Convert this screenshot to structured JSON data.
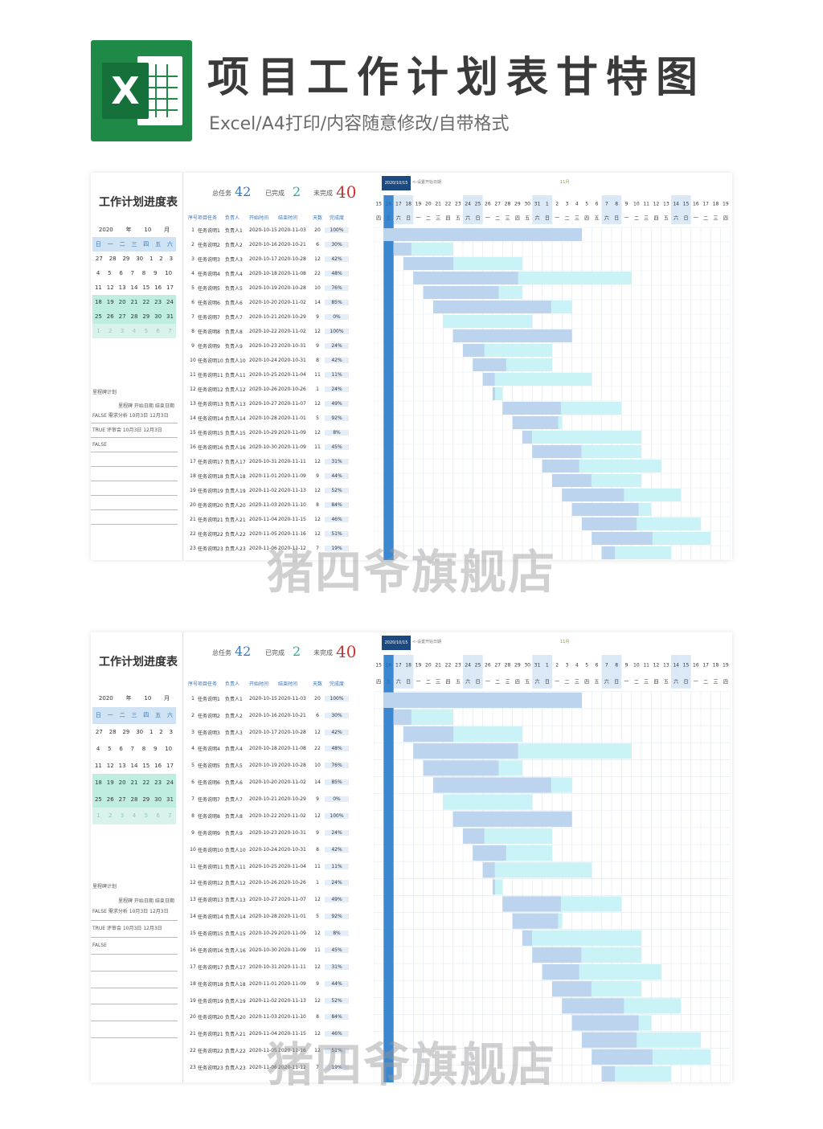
{
  "header": {
    "title": "项目工作计划表甘特图",
    "subtitle": "Excel/A4打印/内容随意修改/自带格式",
    "logo_letter": "X"
  },
  "sheet": {
    "title": "工作计划进度表",
    "stats": {
      "total_label": "总任务",
      "total": "42",
      "done_label": "已完成",
      "done": "2",
      "todo_label": "未完成",
      "todo": "40"
    },
    "calendar": {
      "year": "2020",
      "year_unit": "年",
      "month": "10",
      "month_unit": "月",
      "weekdays": [
        "日",
        "一",
        "二",
        "三",
        "四",
        "五",
        "六"
      ],
      "weeks": [
        [
          "27",
          "28",
          "29",
          "30",
          "1",
          "2",
          "3"
        ],
        [
          "4",
          "5",
          "6",
          "7",
          "8",
          "9",
          "10"
        ],
        [
          "11",
          "12",
          "13",
          "14",
          "15",
          "16",
          "17"
        ],
        [
          "18",
          "19",
          "20",
          "21",
          "22",
          "23",
          "24"
        ],
        [
          "25",
          "26",
          "27",
          "28",
          "29",
          "30",
          "31"
        ],
        [
          "1",
          "2",
          "3",
          "4",
          "5",
          "6",
          "7"
        ]
      ]
    },
    "milestones": {
      "label": "里程碑计划",
      "headers": "里程碑  开始日期 结束日期",
      "rows": [
        "FALSE  需求分析 10月3日 12月3日",
        "TRUE  评审会 10月3日 12月3日",
        "FALSE",
        "",
        "",
        "",
        "",
        ""
      ]
    },
    "table_headers": [
      "序号",
      "项目任务",
      "负责人",
      "开始时间",
      "结束时间",
      "天数",
      "完成度"
    ],
    "tasks": [
      [
        "1",
        "任务说明1",
        "负责人1",
        "2020-10-15",
        "2020-11-03",
        "20",
        "100%"
      ],
      [
        "2",
        "任务说明2",
        "负责人2",
        "2020-10-16",
        "2020-10-21",
        "6",
        "30%"
      ],
      [
        "3",
        "任务说明3",
        "负责人3",
        "2020-10-17",
        "2020-10-28",
        "12",
        "42%"
      ],
      [
        "4",
        "任务说明4",
        "负责人4",
        "2020-10-18",
        "2020-11-08",
        "22",
        "48%"
      ],
      [
        "5",
        "任务说明5",
        "负责人5",
        "2020-10-19",
        "2020-10-28",
        "10",
        "76%"
      ],
      [
        "6",
        "任务说明6",
        "负责人6",
        "2020-10-20",
        "2020-11-02",
        "14",
        "85%"
      ],
      [
        "7",
        "任务说明7",
        "负责人7",
        "2020-10-21",
        "2020-10-29",
        "9",
        "0%"
      ],
      [
        "8",
        "任务说明8",
        "负责人8",
        "2020-10-22",
        "2020-11-02",
        "12",
        "100%"
      ],
      [
        "9",
        "任务说明9",
        "负责人9",
        "2020-10-23",
        "2020-10-31",
        "9",
        "24%"
      ],
      [
        "10",
        "任务说明10",
        "负责人10",
        "2020-10-24",
        "2020-10-31",
        "8",
        "42%"
      ],
      [
        "11",
        "任务说明11",
        "负责人11",
        "2020-10-25",
        "2020-11-04",
        "11",
        "11%"
      ],
      [
        "12",
        "任务说明12",
        "负责人12",
        "2020-10-26",
        "2020-10-26",
        "1",
        "24%"
      ],
      [
        "13",
        "任务说明13",
        "负责人13",
        "2020-10-27",
        "2020-11-07",
        "12",
        "49%"
      ],
      [
        "14",
        "任务说明14",
        "负责人14",
        "2020-10-28",
        "2020-11-01",
        "5",
        "92%"
      ],
      [
        "15",
        "任务说明15",
        "负责人15",
        "2020-10-29",
        "2020-11-09",
        "12",
        "8%"
      ],
      [
        "16",
        "任务说明16",
        "负责人16",
        "2020-10-30",
        "2020-11-09",
        "11",
        "45%"
      ],
      [
        "17",
        "任务说明17",
        "负责人17",
        "2020-10-31",
        "2020-11-11",
        "12",
        "31%"
      ],
      [
        "18",
        "任务说明18",
        "负责人18",
        "2020-11-01",
        "2020-11-09",
        "9",
        "44%"
      ],
      [
        "19",
        "任务说明19",
        "负责人19",
        "2020-11-02",
        "2020-11-13",
        "12",
        "52%"
      ],
      [
        "20",
        "任务说明20",
        "负责人20",
        "2020-11-03",
        "2020-11-10",
        "8",
        "84%"
      ],
      [
        "21",
        "任务说明21",
        "负责人21",
        "2020-11-04",
        "2020-11-15",
        "12",
        "46%"
      ],
      [
        "22",
        "任务说明22",
        "负责人22",
        "2020-11-05",
        "2020-11-16",
        "12",
        "51%"
      ],
      [
        "23",
        "任务说明23",
        "负责人23",
        "2020-11-06",
        "2020-11-12",
        "7",
        "19%"
      ]
    ],
    "gantt": {
      "start_date": "2020/10/15",
      "tip": "<-设置开始日期",
      "month_label": "11月",
      "day_labels": [
        "15",
        "16",
        "17",
        "18",
        "19",
        "20",
        "21",
        "22",
        "23",
        "24",
        "25",
        "26",
        "27",
        "28",
        "29",
        "30",
        "31",
        "1",
        "2",
        "3",
        "4",
        "5",
        "6",
        "7",
        "8",
        "9",
        "10",
        "11",
        "12",
        "13",
        "14",
        "15",
        "16",
        "17",
        "18",
        "19"
      ],
      "dow_labels": [
        "四",
        "五",
        "六",
        "日",
        "一",
        "二",
        "三",
        "四",
        "五",
        "六",
        "日",
        "一",
        "二",
        "三",
        "四",
        "五",
        "六",
        "日",
        "一",
        "二",
        "三",
        "四",
        "五",
        "六",
        "日",
        "一",
        "二",
        "三",
        "四",
        "五",
        "六",
        "日",
        "一",
        "二",
        "三",
        "四"
      ],
      "colors": {
        "done": "#bcd4ee",
        "todo": "#c9f3f6",
        "today": "#1a73c8"
      }
    }
  },
  "watermark": "猪四爷旗舰店"
}
